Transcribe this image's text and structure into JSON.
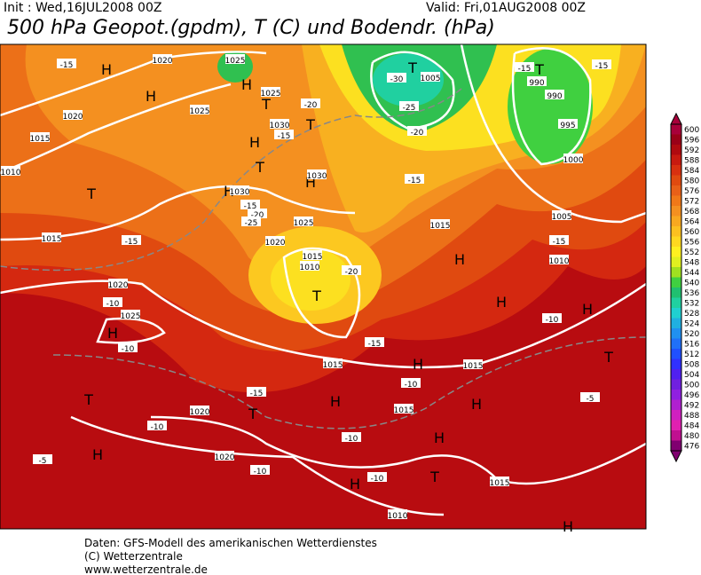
{
  "header": {
    "init": "Init : Wed,16JUL2008 00Z",
    "valid": "Valid: Fri,01AUG2008 00Z",
    "title": "500 hPa Geopot.(gpdm), T (C) und Bodendr. (hPa)"
  },
  "map": {
    "labels": [
      "H",
      "H",
      "H",
      "H",
      "H",
      "H",
      "T",
      "T",
      "T",
      "T",
      "H",
      "T",
      "H",
      "T",
      "H",
      "T",
      "H",
      "H",
      "H",
      "H",
      "H",
      "T",
      "H",
      "H",
      "T",
      "H",
      "T",
      "T",
      "1020",
      "1025",
      "1025",
      "1030",
      "1025",
      "1020",
      "1015",
      "1010",
      "1030",
      "1030",
      "1025",
      "1020",
      "1015",
      "1010",
      "1015",
      "1020",
      "1025",
      "1015",
      "1020",
      "1020",
      "1015",
      "1015",
      "1015",
      "1010",
      "1005",
      "990",
      "990",
      "995",
      "1000",
      "1005",
      "1010",
      "1015",
      "-15",
      "-15",
      "-20",
      "-15",
      "-15",
      "-20",
      "-25",
      "-10",
      "-10",
      "-10",
      "-5",
      "-10",
      "-15",
      "-15",
      "-10",
      "-10",
      "-10",
      "-15",
      "-20",
      "-25",
      "-30",
      "-15",
      "-15",
      "-15",
      "-10",
      "-5",
      "-20"
    ]
  },
  "colorbar": {
    "ticks": [
      600,
      596,
      592,
      588,
      584,
      580,
      576,
      572,
      568,
      564,
      560,
      556,
      552,
      548,
      544,
      540,
      536,
      532,
      528,
      524,
      520,
      516,
      512,
      508,
      504,
      500,
      496,
      492,
      488,
      484,
      480,
      476
    ]
  },
  "footer": {
    "line1": "Daten: GFS-Modell des amerikanischen Wetterdienstes",
    "line2": "(C) Wetterzentrale",
    "line3": "www.wetterzentrale.de"
  }
}
